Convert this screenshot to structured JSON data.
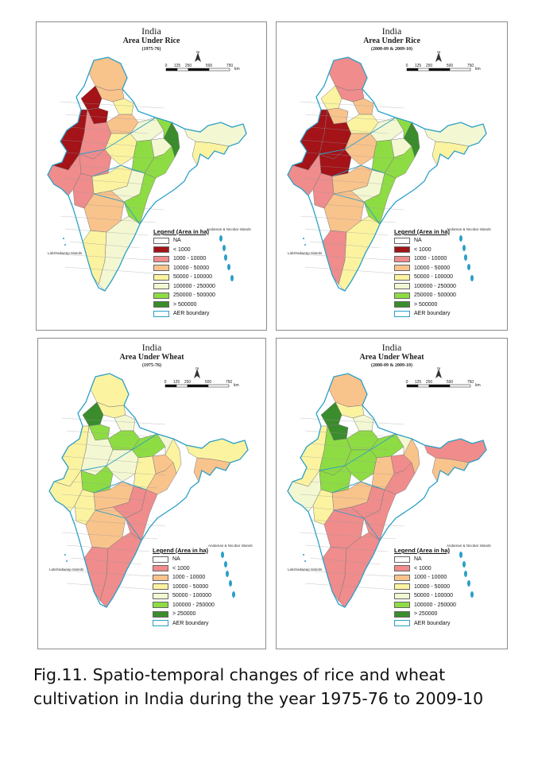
{
  "panels": [
    {
      "country": "India",
      "map_title": "Area Under Rice",
      "period": "(1975-76)",
      "legend_title": "Legend (Area in ha)",
      "legend": [
        {
          "label": "NA",
          "color": "#ffffff"
        },
        {
          "label": "< 1000",
          "color": "#a31318"
        },
        {
          "label": "1000 - 10000",
          "color": "#f08c8c"
        },
        {
          "label": "10000 - 50000",
          "color": "#f9c38c"
        },
        {
          "label": "50000 - 100000",
          "color": "#fbf3a0"
        },
        {
          "label": "100000 - 250000",
          "color": "#f3f8d2"
        },
        {
          "label": "250000 - 500000",
          "color": "#8edc43"
        },
        {
          "label": "> 500000",
          "color": "#3a8c2c"
        },
        {
          "label": "AER boundary",
          "color": "#2a9fc7"
        }
      ]
    },
    {
      "country": "India",
      "map_title": "Area Under Rice",
      "period": "(2008-09 & 2009-10)",
      "legend_title": "Legend (Area in ha)",
      "legend": [
        {
          "label": "NA",
          "color": "#ffffff"
        },
        {
          "label": "< 1000",
          "color": "#a31318"
        },
        {
          "label": "1000 - 10000",
          "color": "#f08c8c"
        },
        {
          "label": "10000 - 50000",
          "color": "#f9c38c"
        },
        {
          "label": "50000 - 100000",
          "color": "#fbf3a0"
        },
        {
          "label": "100000 - 250000",
          "color": "#f3f8d2"
        },
        {
          "label": "250000 - 500000",
          "color": "#8edc43"
        },
        {
          "label": "> 500000",
          "color": "#3a8c2c"
        },
        {
          "label": "AER boundary",
          "color": "#2a9fc7"
        }
      ]
    },
    {
      "country": "India",
      "map_title": "Area Under Wheat",
      "period": "(1975-76)",
      "legend_title": "Legend (Area in ha)",
      "legend": [
        {
          "label": "NA",
          "color": "#ffffff"
        },
        {
          "label": "< 1000",
          "color": "#f08c8c"
        },
        {
          "label": "1000 - 10000",
          "color": "#f9c38c"
        },
        {
          "label": "10000 - 50000",
          "color": "#fbf3a0"
        },
        {
          "label": "50000 - 100000",
          "color": "#f3f8d2"
        },
        {
          "label": "100000 - 250000",
          "color": "#8edc43"
        },
        {
          "label": "> 250000",
          "color": "#3a8c2c"
        },
        {
          "label": "AER boundary",
          "color": "#2a9fc7"
        }
      ]
    },
    {
      "country": "India",
      "map_title": "Area Under Wheat",
      "period": "(2008-09 & 2009-10)",
      "legend_title": "Legend (Area in ha)",
      "legend": [
        {
          "label": "NA",
          "color": "#ffffff"
        },
        {
          "label": "< 1000",
          "color": "#f08c8c"
        },
        {
          "label": "1000 - 10000",
          "color": "#f9c38c"
        },
        {
          "label": "10000 - 50000",
          "color": "#fbf3a0"
        },
        {
          "label": "50000 - 100000",
          "color": "#f3f8d2"
        },
        {
          "label": "100000 - 250000",
          "color": "#8edc43"
        },
        {
          "label": "> 250000",
          "color": "#3a8c2c"
        },
        {
          "label": "AER boundary",
          "color": "#2a9fc7"
        }
      ]
    }
  ],
  "scale": {
    "ticks": [
      "0",
      "125",
      "250",
      "500",
      "750"
    ],
    "unit": "km",
    "north": "N"
  },
  "place_labels": {
    "andaman": "Andaman & Nicobar Islands",
    "lakshadweep": "Lakshadweep Islands"
  },
  "caption_line1": "Fig.11. Spatio-temporal changes of rice and wheat",
  "caption_line2": "cultivation in India during the year 1975-76 to 2009-10"
}
